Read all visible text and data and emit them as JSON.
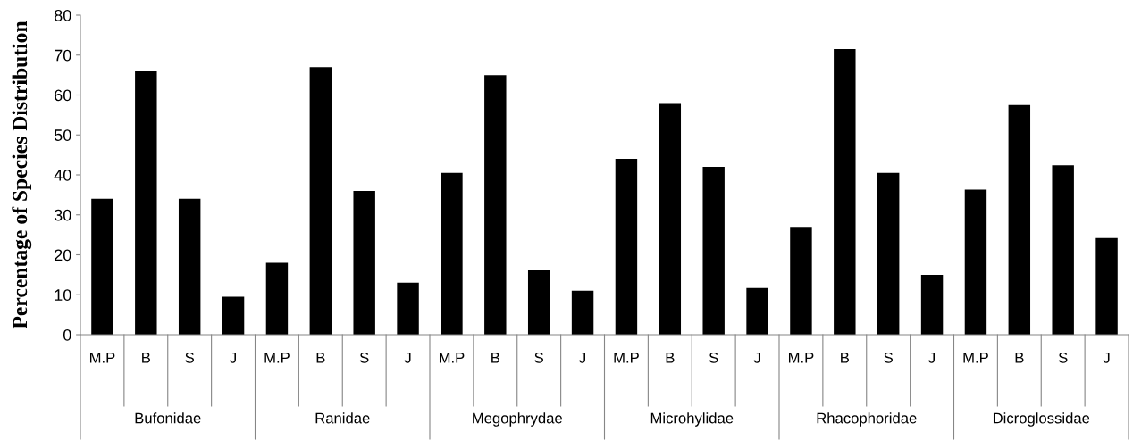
{
  "chart_data": {
    "type": "bar",
    "ylabel": "Percentage of Species Distribution",
    "categories": [
      "M.P",
      "B",
      "S",
      "J",
      "M.P",
      "B",
      "S",
      "J",
      "M.P",
      "B",
      "S",
      "J",
      "M.P",
      "B",
      "S",
      "J",
      "M.P",
      "B",
      "S",
      "J",
      "M.P",
      "B",
      "S",
      "J"
    ],
    "values": [
      34,
      66,
      34,
      9.5,
      18,
      67,
      36,
      13,
      40.5,
      65,
      16.3,
      11,
      44,
      58,
      42,
      11.7,
      27,
      71.5,
      40.5,
      15,
      36.3,
      57.5,
      42.4,
      24.2
    ],
    "color": "#000000",
    "ylim": [
      0,
      80
    ],
    "yticks": [
      0,
      10,
      20,
      30,
      40,
      50,
      60,
      70,
      80
    ],
    "annotations": [
      "Bufonidae",
      "Ranidae",
      "Megophrydae",
      "Microhylidae",
      "Rhacophoridae",
      "Dicroglossidae"
    ]
  }
}
